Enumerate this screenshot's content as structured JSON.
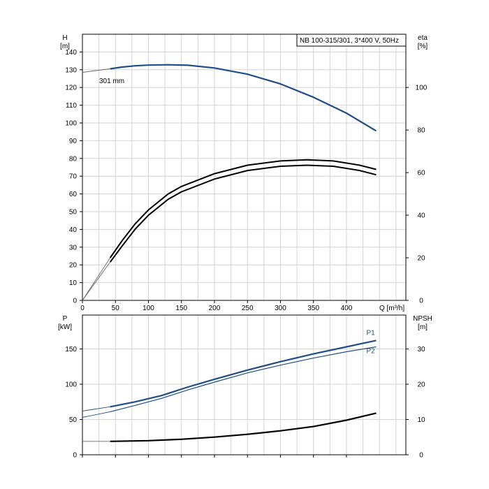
{
  "chart_data": [
    {
      "type": "line",
      "title": "NB 100-315/301, 3*400 V, 50Hz",
      "left_axis": {
        "label_line1": "H",
        "label_line2": "[m]",
        "range": [
          0,
          150
        ],
        "ticks": [
          0,
          10,
          20,
          30,
          40,
          50,
          60,
          70,
          80,
          90,
          100,
          110,
          120,
          130,
          140
        ]
      },
      "right_axis": {
        "label_line1": "eta",
        "label_line2": "[%]",
        "range": [
          0,
          125
        ],
        "ticks": [
          0,
          20,
          40,
          60,
          80,
          100
        ]
      },
      "x_axis": {
        "label": "Q [m³/h]",
        "range": [
          0,
          490
        ],
        "ticks": [
          0,
          50,
          100,
          150,
          200,
          250,
          300,
          350,
          400
        ]
      },
      "grid": true,
      "annotation": "301 mm",
      "series": [
        {
          "axis": "left",
          "color": "#1f4e86",
          "style": "pump_curve",
          "x": [
            0,
            20,
            42,
            60,
            80,
            100,
            130,
            160,
            200,
            250,
            300,
            350,
            400,
            445
          ],
          "y": [
            128.5,
            129.5,
            130.5,
            131.5,
            132.2,
            132.6,
            132.8,
            132.5,
            131,
            127.5,
            122,
            114.5,
            105.5,
            95.5
          ]
        },
        {
          "axis": "right",
          "color": "#000000",
          "style": "efficiency_outer",
          "x": [
            0,
            42,
            60,
            80,
            100,
            130,
            150,
            200,
            250,
            300,
            340,
            380,
            420,
            445
          ],
          "y": [
            0,
            20,
            28,
            36,
            42.5,
            50,
            53.5,
            59.5,
            63.5,
            65.5,
            66,
            65.5,
            63.5,
            61.5
          ]
        },
        {
          "axis": "right",
          "color": "#000000",
          "style": "efficiency_inner",
          "x": [
            0,
            42,
            60,
            80,
            100,
            130,
            150,
            200,
            250,
            300,
            340,
            380,
            420,
            445
          ],
          "y": [
            0,
            18,
            25.5,
            33.5,
            40,
            47.5,
            51,
            57,
            61,
            63,
            63.5,
            63,
            61,
            59
          ]
        }
      ]
    },
    {
      "type": "line",
      "left_axis": {
        "label_line1": "P",
        "label_line2": "[kW]",
        "range": [
          0,
          198
        ],
        "ticks": [
          0,
          50,
          100,
          150
        ]
      },
      "right_axis": {
        "label_line1": "NPSH",
        "label_line2": "[m]",
        "range": [
          0,
          39.6
        ],
        "ticks": [
          0,
          10,
          20,
          30
        ]
      },
      "x_axis": {
        "range": [
          0,
          490
        ],
        "ticks": [
          0,
          50,
          100,
          150,
          200,
          250,
          300,
          350,
          400
        ]
      },
      "grid": true,
      "series": [
        {
          "name": "P1",
          "axis": "left",
          "color": "#1f4e86",
          "style": "power_thick",
          "x": [
            0,
            42,
            80,
            120,
            160,
            200,
            250,
            300,
            350,
            400,
            445
          ],
          "y": [
            62,
            68,
            75,
            84,
            96,
            107,
            120,
            132,
            143,
            153,
            162
          ]
        },
        {
          "name": "P2",
          "axis": "left",
          "color": "#1f4e86",
          "style": "power_thin",
          "x": [
            0,
            42,
            80,
            120,
            160,
            200,
            250,
            300,
            350,
            400,
            445
          ],
          "y": [
            53,
            61,
            70,
            80,
            92,
            103,
            116,
            127,
            137,
            146,
            153
          ]
        },
        {
          "axis": "right",
          "color": "#000000",
          "style": "npsh",
          "x": [
            0,
            42,
            100,
            150,
            200,
            250,
            300,
            350,
            400,
            445
          ],
          "y": [
            3.8,
            3.8,
            4.0,
            4.4,
            5.0,
            5.8,
            6.8,
            8.0,
            9.8,
            11.8
          ]
        }
      ]
    }
  ]
}
